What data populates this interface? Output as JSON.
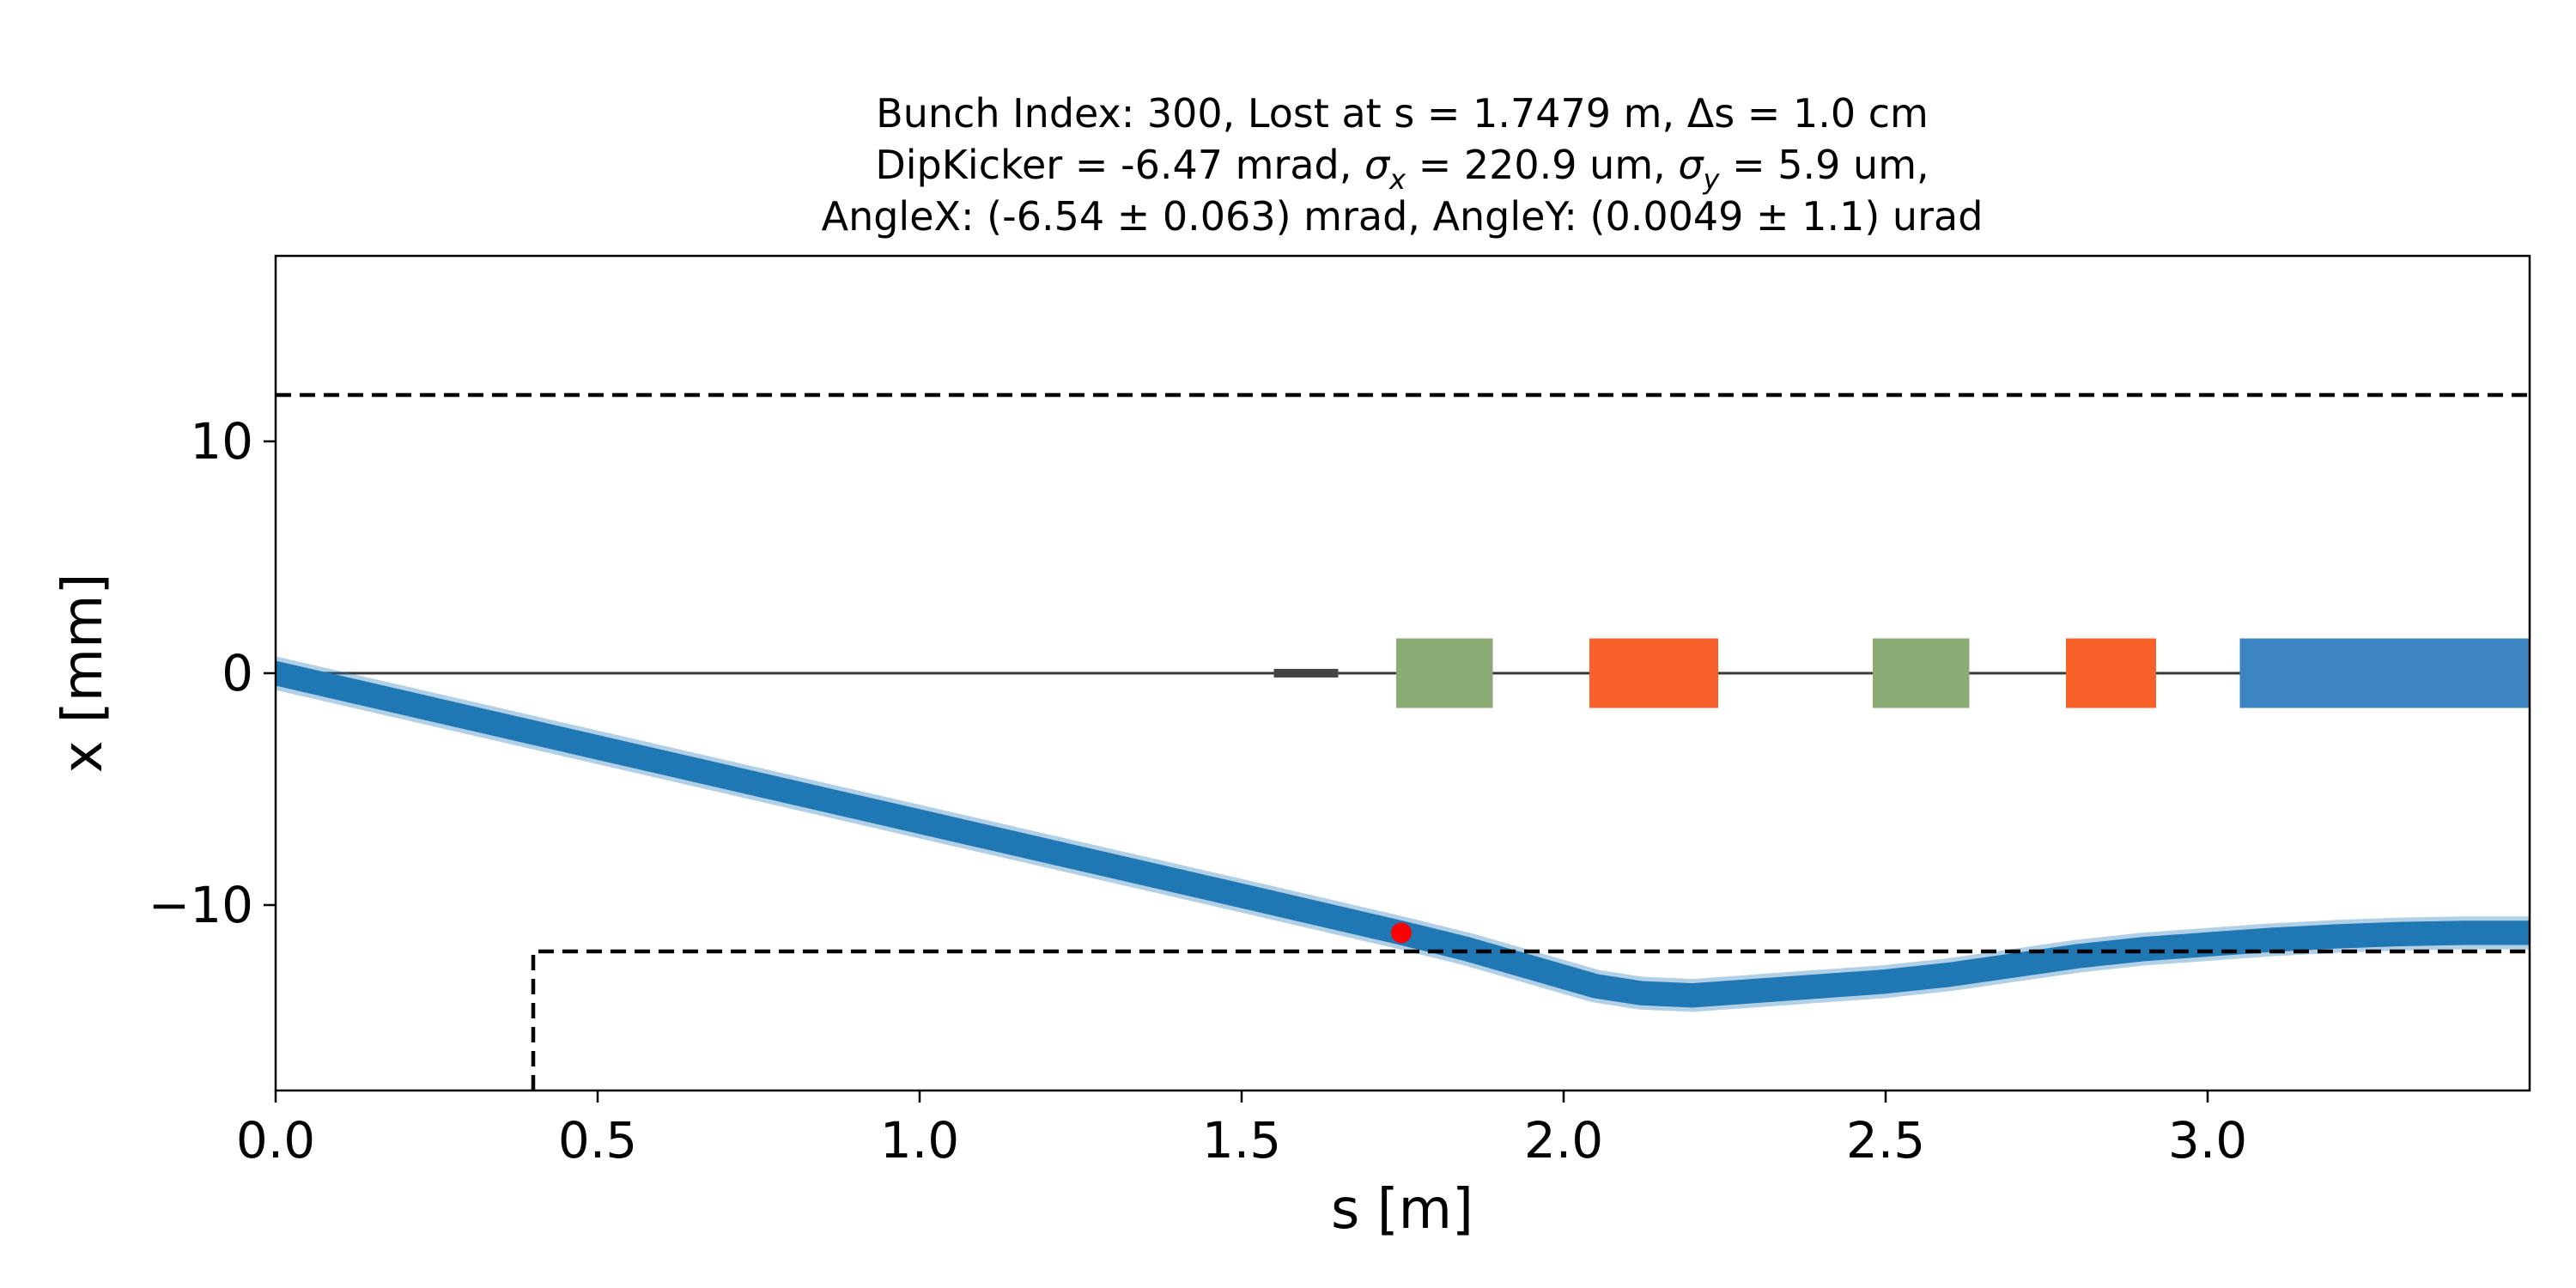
{
  "chart_data": {
    "type": "line",
    "title": {
      "line1": "Bunch Index: 300, Lost at s = 1.7479 m, Δs = 1.0 cm",
      "line2_a": "DipKicker = -6.47 mrad, ",
      "line2_sx_sym": "σ",
      "line2_sx_sub": "x",
      "line2_b": " = 220.9 um, ",
      "line2_sy_sym": "σ",
      "line2_sy_sub": "y",
      "line2_c": " = 5.9 um,",
      "line3": "AngleX: (-6.54 ± 0.063) mrad, AngleY: (0.0049 ± 1.1) urad"
    },
    "xlabel": "s [m]",
    "ylabel": "x [mm]",
    "xlim": [
      0.0,
      3.5
    ],
    "ylim": [
      -18,
      18
    ],
    "xticks": [
      0.0,
      0.5,
      1.0,
      1.5,
      2.0,
      2.5,
      3.0
    ],
    "xtick_labels": [
      "0.0",
      "0.5",
      "1.0",
      "1.5",
      "2.0",
      "2.5",
      "3.0"
    ],
    "yticks": [
      10,
      0,
      -10
    ],
    "ytick_labels": [
      "10",
      "0",
      "−10"
    ],
    "grid": false,
    "beam_color": "#1f77b4",
    "trajectory": {
      "s": [
        0.0,
        0.5,
        1.0,
        1.5,
        1.7479,
        1.85,
        1.95,
        2.05,
        2.12,
        2.2,
        2.3,
        2.5,
        2.6,
        2.7,
        2.8,
        2.9,
        3.0,
        3.1,
        3.2,
        3.3,
        3.4,
        3.5
      ],
      "x": [
        0.0,
        -3.2,
        -6.4,
        -9.6,
        -11.2,
        -11.9,
        -12.7,
        -13.5,
        -13.8,
        -13.9,
        -13.7,
        -13.3,
        -13.0,
        -12.6,
        -12.2,
        -11.9,
        -11.7,
        -11.5,
        -11.35,
        -11.25,
        -11.2,
        -11.2
      ]
    },
    "beam_sigma_mm": 0.45,
    "loss_point": {
      "s": 1.7479,
      "x": -11.2,
      "color": "#ff0000"
    },
    "aperture_upper": {
      "s": [
        0.0,
        3.5
      ],
      "x": [
        12.0,
        12.0
      ]
    },
    "aperture_lower": {
      "s": [
        0.4,
        0.4,
        3.5
      ],
      "x": [
        -18.0,
        -12.0,
        -12.0
      ]
    },
    "elements": [
      {
        "type": "marker",
        "s_start": 1.55,
        "s_end": 1.65,
        "color": "#444444"
      },
      {
        "type": "quadrupole",
        "s_start": 1.74,
        "s_end": 1.89,
        "color": "#8aab75"
      },
      {
        "type": "kicker",
        "s_start": 2.04,
        "s_end": 2.24,
        "color": "#f8602a"
      },
      {
        "type": "quadrupole",
        "s_start": 2.48,
        "s_end": 2.63,
        "color": "#8aab75"
      },
      {
        "type": "kicker",
        "s_start": 2.78,
        "s_end": 2.92,
        "color": "#f8602a"
      },
      {
        "type": "dipole",
        "s_start": 3.05,
        "s_end": 3.5,
        "color": "#3d85c0"
      }
    ],
    "element_half_height_mm": 1.5
  }
}
